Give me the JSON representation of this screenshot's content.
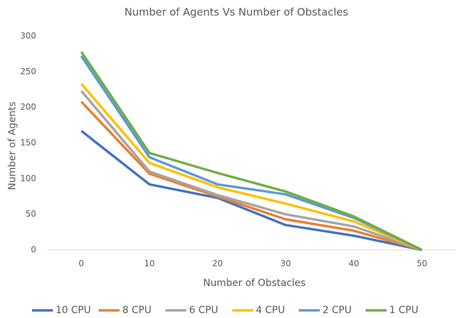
{
  "chart_data": {
    "type": "line",
    "title": "Number of Agents Vs Number of Obstacles",
    "x_label": "Number of Obstacles",
    "y_label": "Number of Agents",
    "categories": [
      "0",
      "10",
      "20",
      "30",
      "40",
      "50"
    ],
    "ylim": [
      0,
      300
    ],
    "yticks": [
      0,
      50,
      100,
      150,
      200,
      250,
      300
    ],
    "legend": "bottom",
    "series": [
      {
        "name": "10 CPU",
        "color": "#4472c4",
        "values": [
          167,
          92,
          73,
          35,
          20,
          0
        ]
      },
      {
        "name": "8 CPU",
        "color": "#ed7d31",
        "values": [
          208,
          107,
          75,
          43,
          27,
          0
        ]
      },
      {
        "name": "6 CPU",
        "color": "#a5a5a5",
        "values": [
          223,
          110,
          77,
          50,
          33,
          0
        ]
      },
      {
        "name": "4 CPU",
        "color": "#ffc000",
        "values": [
          233,
          122,
          88,
          65,
          40,
          0
        ]
      },
      {
        "name": "2 CPU",
        "color": "#5b9bd5",
        "values": [
          272,
          130,
          92,
          78,
          45,
          0
        ]
      },
      {
        "name": "1 CPU",
        "color": "#70ad47",
        "values": [
          278,
          136,
          108,
          82,
          47,
          0
        ]
      }
    ]
  }
}
